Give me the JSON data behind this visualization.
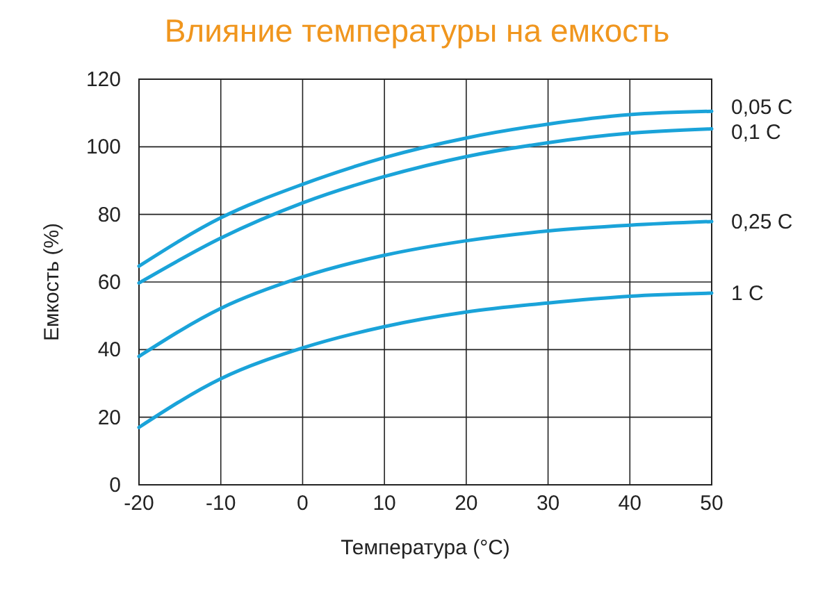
{
  "chart_data": {
    "type": "line",
    "title": "Влияние температуры на емкость",
    "xlabel": "Температура (°C)",
    "ylabel": "Емкость (%)",
    "x": [
      -20,
      -10,
      0,
      10,
      20,
      30,
      40,
      50
    ],
    "series": [
      {
        "name": "0,05 C",
        "color": "#1aa3d9",
        "values": [
          64.7,
          79,
          88.9,
          96.8,
          102.6,
          106.7,
          109.5,
          110.5
        ]
      },
      {
        "name": "0,1 C",
        "color": "#1aa3d9",
        "values": [
          59.7,
          73,
          83.4,
          91.2,
          97.1,
          101.2,
          104,
          105.3
        ]
      },
      {
        "name": "0,25 C",
        "color": "#1aa3d9",
        "values": [
          38,
          52.2,
          61.5,
          67.9,
          72.2,
          75.1,
          76.8,
          77.9
        ]
      },
      {
        "name": "1 C",
        "color": "#1aa3d9",
        "values": [
          17,
          31.4,
          40.5,
          46.8,
          51.1,
          53.8,
          55.8,
          56.7
        ]
      }
    ],
    "xlim": [
      -20,
      50
    ],
    "xticks": [
      -20,
      -10,
      0,
      10,
      20,
      30,
      40,
      50
    ],
    "ylim": [
      0,
      120
    ],
    "yticks": [
      0,
      20,
      40,
      60,
      80,
      100,
      120
    ],
    "grid": true,
    "marker": "none",
    "line_style": "solid"
  }
}
